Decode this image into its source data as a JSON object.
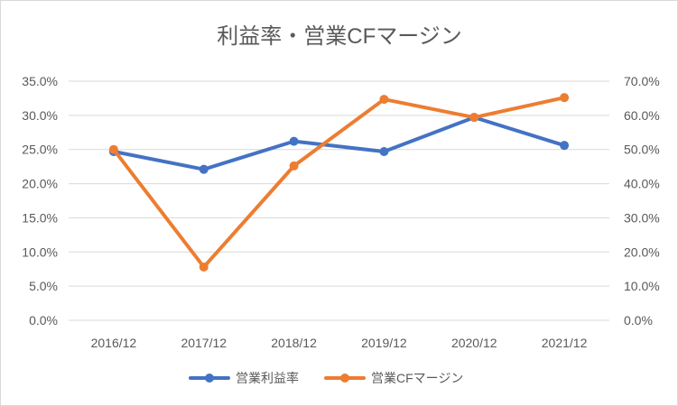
{
  "chart_data": {
    "type": "line",
    "title": "利益率・営業CFマージン",
    "categories": [
      "2016/12",
      "2017/12",
      "2018/12",
      "2019/12",
      "2020/12",
      "2021/12"
    ],
    "y_left": {
      "range": [
        0,
        35
      ],
      "ticks": [
        "0.0%",
        "5.0%",
        "10.0%",
        "15.0%",
        "20.0%",
        "25.0%",
        "30.0%",
        "35.0%"
      ]
    },
    "y_right": {
      "range": [
        0,
        70
      ],
      "ticks": [
        "0.0%",
        "10.0%",
        "20.0%",
        "30.0%",
        "40.0%",
        "50.0%",
        "60.0%",
        "70.0%"
      ]
    },
    "grid": true,
    "legend_position": "bottom",
    "series": [
      {
        "name": "営業利益率",
        "axis": "left",
        "color": "#4472C4",
        "values": [
          24.7,
          22.1,
          26.2,
          24.7,
          29.7,
          25.6
        ]
      },
      {
        "name": "営業CFマージン",
        "axis": "right",
        "color": "#ED7D31",
        "values": [
          50.0,
          15.6,
          45.2,
          64.7,
          59.4,
          65.2
        ]
      }
    ]
  }
}
